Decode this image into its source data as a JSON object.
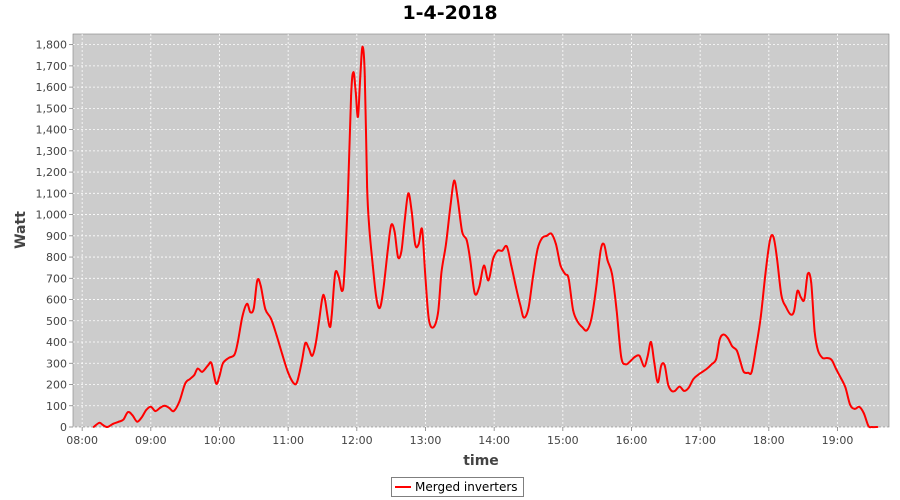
{
  "chart_data": {
    "type": "line",
    "title": "1-4-2018",
    "xlabel": "time",
    "ylabel": "Watt",
    "x_ticks": [
      "08:00",
      "09:00",
      "10:00",
      "11:00",
      "12:00",
      "13:00",
      "14:00",
      "15:00",
      "16:00",
      "17:00",
      "18:00",
      "19:00"
    ],
    "y_ticks": [
      "0",
      "100",
      "200",
      "300",
      "400",
      "500",
      "600",
      "700",
      "800",
      "900",
      "1,000",
      "1,100",
      "1,200",
      "1,300",
      "1,400",
      "1,500",
      "1,600",
      "1,700",
      "1,800"
    ],
    "xlim": [
      "07:52",
      "19:45"
    ],
    "ylim": [
      0,
      1850
    ],
    "grid": true,
    "legend_position": "bottom-center",
    "colors": {
      "series": "#ff0000",
      "plot_background": "#cccccc",
      "grid": "#ffffff"
    },
    "series": [
      {
        "name": "Merged inverters",
        "points": [
          [
            "08:10",
            0
          ],
          [
            "08:15",
            20
          ],
          [
            "08:18",
            10
          ],
          [
            "08:22",
            0
          ],
          [
            "08:27",
            15
          ],
          [
            "08:32",
            25
          ],
          [
            "08:36",
            35
          ],
          [
            "08:40",
            70
          ],
          [
            "08:44",
            55
          ],
          [
            "08:48",
            25
          ],
          [
            "08:52",
            45
          ],
          [
            "08:56",
            80
          ],
          [
            "09:00",
            95
          ],
          [
            "09:04",
            75
          ],
          [
            "09:08",
            90
          ],
          [
            "09:12",
            100
          ],
          [
            "09:16",
            90
          ],
          [
            "09:20",
            75
          ],
          [
            "09:25",
            120
          ],
          [
            "09:30",
            205
          ],
          [
            "09:34",
            225
          ],
          [
            "09:38",
            245
          ],
          [
            "09:41",
            275
          ],
          [
            "09:45",
            260
          ],
          [
            "09:50",
            290
          ],
          [
            "09:53",
            300
          ],
          [
            "09:57",
            205
          ],
          [
            "10:00",
            240
          ],
          [
            "10:03",
            300
          ],
          [
            "10:08",
            325
          ],
          [
            "10:13",
            340
          ],
          [
            "10:16",
            400
          ],
          [
            "10:20",
            520
          ],
          [
            "10:24",
            580
          ],
          [
            "10:27",
            540
          ],
          [
            "10:30",
            560
          ],
          [
            "10:33",
            690
          ],
          [
            "10:36",
            665
          ],
          [
            "10:40",
            555
          ],
          [
            "10:45",
            510
          ],
          [
            "10:50",
            430
          ],
          [
            "10:55",
            340
          ],
          [
            "11:00",
            255
          ],
          [
            "11:05",
            205
          ],
          [
            "11:08",
            215
          ],
          [
            "11:12",
            310
          ],
          [
            "11:15",
            395
          ],
          [
            "11:18",
            370
          ],
          [
            "11:21",
            335
          ],
          [
            "11:24",
            390
          ],
          [
            "11:27",
            500
          ],
          [
            "11:30",
            610
          ],
          [
            "11:32",
            605
          ],
          [
            "11:36",
            475
          ],
          [
            "11:38",
            520
          ],
          [
            "11:41",
            720
          ],
          [
            "11:44",
            710
          ],
          [
            "11:47",
            640
          ],
          [
            "11:49",
            710
          ],
          [
            "11:52",
            1060
          ],
          [
            "11:55",
            1560
          ],
          [
            "11:57",
            1670
          ],
          [
            "11:59",
            1580
          ],
          [
            "12:01",
            1460
          ],
          [
            "12:03",
            1650
          ],
          [
            "12:05",
            1790
          ],
          [
            "12:07",
            1650
          ],
          [
            "12:09",
            1130
          ],
          [
            "12:11",
            930
          ],
          [
            "12:14",
            760
          ],
          [
            "12:17",
            610
          ],
          [
            "12:20",
            560
          ],
          [
            "12:23",
            640
          ],
          [
            "12:27",
            830
          ],
          [
            "12:30",
            950
          ],
          [
            "12:33",
            920
          ],
          [
            "12:36",
            800
          ],
          [
            "12:39",
            830
          ],
          [
            "12:42",
            980
          ],
          [
            "12:45",
            1100
          ],
          [
            "12:48",
            1010
          ],
          [
            "12:51",
            860
          ],
          [
            "12:54",
            860
          ],
          [
            "12:57",
            930
          ],
          [
            "13:00",
            700
          ],
          [
            "13:03",
            505
          ],
          [
            "13:07",
            470
          ],
          [
            "13:11",
            540
          ],
          [
            "13:14",
            730
          ],
          [
            "13:18",
            865
          ],
          [
            "13:22",
            1050
          ],
          [
            "13:25",
            1160
          ],
          [
            "13:28",
            1080
          ],
          [
            "13:32",
            920
          ],
          [
            "13:36",
            880
          ],
          [
            "13:39",
            790
          ],
          [
            "13:43",
            630
          ],
          [
            "13:47",
            660
          ],
          [
            "13:51",
            760
          ],
          [
            "13:55",
            690
          ],
          [
            "13:59",
            790
          ],
          [
            "14:03",
            830
          ],
          [
            "14:07",
            830
          ],
          [
            "14:11",
            850
          ],
          [
            "14:15",
            760
          ],
          [
            "14:19",
            660
          ],
          [
            "14:23",
            570
          ],
          [
            "14:26",
            515
          ],
          [
            "14:30",
            560
          ],
          [
            "14:34",
            710
          ],
          [
            "14:38",
            840
          ],
          [
            "14:42",
            890
          ],
          [
            "14:46",
            900
          ],
          [
            "14:50",
            910
          ],
          [
            "14:54",
            860
          ],
          [
            "14:58",
            760
          ],
          [
            "15:02",
            720
          ],
          [
            "15:05",
            700
          ],
          [
            "15:09",
            550
          ],
          [
            "15:13",
            495
          ],
          [
            "15:17",
            470
          ],
          [
            "15:21",
            455
          ],
          [
            "15:25",
            510
          ],
          [
            "15:29",
            650
          ],
          [
            "15:33",
            830
          ],
          [
            "15:36",
            860
          ],
          [
            "15:39",
            785
          ],
          [
            "15:43",
            720
          ],
          [
            "15:47",
            550
          ],
          [
            "15:51",
            330
          ],
          [
            "15:55",
            295
          ],
          [
            "15:59",
            310
          ],
          [
            "16:03",
            330
          ],
          [
            "16:07",
            335
          ],
          [
            "16:11",
            285
          ],
          [
            "16:14",
            330
          ],
          [
            "16:17",
            400
          ],
          [
            "16:20",
            300
          ],
          [
            "16:23",
            210
          ],
          [
            "16:26",
            290
          ],
          [
            "16:29",
            290
          ],
          [
            "16:32",
            200
          ],
          [
            "16:35",
            170
          ],
          [
            "16:38",
            170
          ],
          [
            "16:42",
            190
          ],
          [
            "16:46",
            170
          ],
          [
            "16:50",
            185
          ],
          [
            "16:54",
            225
          ],
          [
            "16:58",
            245
          ],
          [
            "17:02",
            260
          ],
          [
            "17:06",
            275
          ],
          [
            "17:10",
            295
          ],
          [
            "17:14",
            320
          ],
          [
            "17:17",
            410
          ],
          [
            "17:20",
            435
          ],
          [
            "17:24",
            420
          ],
          [
            "17:28",
            380
          ],
          [
            "17:32",
            360
          ],
          [
            "17:35",
            310
          ],
          [
            "17:38",
            260
          ],
          [
            "17:42",
            255
          ],
          [
            "17:45",
            260
          ],
          [
            "17:49",
            380
          ],
          [
            "17:53",
            520
          ],
          [
            "17:57",
            720
          ],
          [
            "18:01",
            880
          ],
          [
            "18:04",
            895
          ],
          [
            "18:07",
            800
          ],
          [
            "18:11",
            620
          ],
          [
            "18:15",
            565
          ],
          [
            "18:19",
            530
          ],
          [
            "18:22",
            545
          ],
          [
            "18:25",
            640
          ],
          [
            "18:28",
            610
          ],
          [
            "18:31",
            600
          ],
          [
            "18:34",
            720
          ],
          [
            "18:37",
            680
          ],
          [
            "18:40",
            450
          ],
          [
            "18:43",
            360
          ],
          [
            "18:47",
            325
          ],
          [
            "18:51",
            325
          ],
          [
            "18:55",
            315
          ],
          [
            "18:59",
            270
          ],
          [
            "19:03",
            230
          ],
          [
            "19:07",
            185
          ],
          [
            "19:11",
            105
          ],
          [
            "19:15",
            85
          ],
          [
            "19:19",
            95
          ],
          [
            "19:23",
            65
          ],
          [
            "19:27",
            5
          ],
          [
            "19:30",
            0
          ],
          [
            "19:35",
            0
          ]
        ]
      }
    ]
  }
}
